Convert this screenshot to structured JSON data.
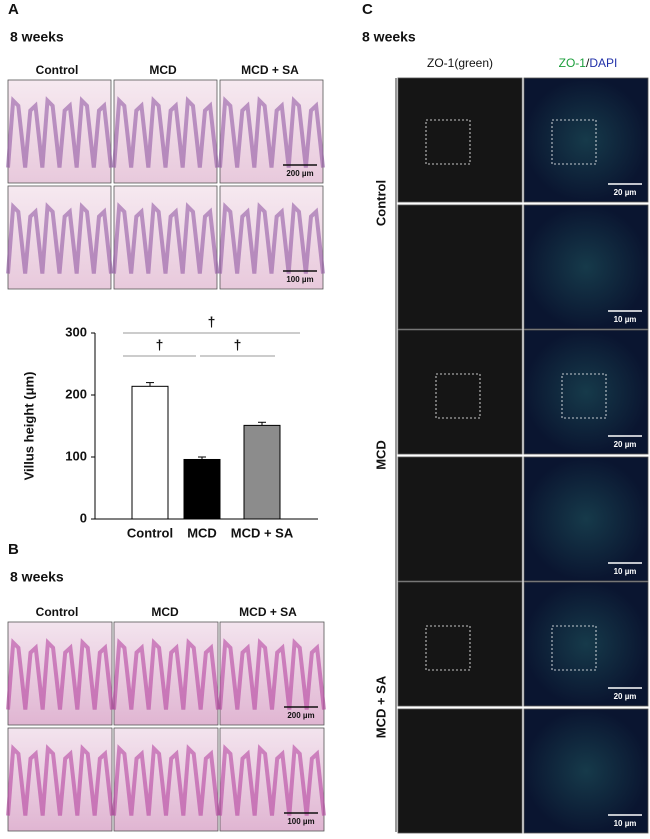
{
  "panels": {
    "a": {
      "label": "A",
      "subtitle": "8 weeks",
      "columns": [
        "Control",
        "MCD",
        "MCD + SA"
      ],
      "scale_bars": [
        "200 µm",
        "100 µm"
      ]
    },
    "b": {
      "label": "B",
      "subtitle": "8 weeks",
      "columns": [
        "Control",
        "MCD",
        "MCD + SA"
      ],
      "scale_bars": [
        "200 µm",
        "100 µm"
      ]
    },
    "c": {
      "label": "C",
      "subtitle": "8 weeks",
      "columns": [
        "ZO-1(green)",
        [
          "ZO-1",
          "/",
          "DAPI"
        ]
      ],
      "rows": [
        {
          "label": "Control",
          "scale_bars": [
            "20 µm",
            "10 µm"
          ]
        },
        {
          "label": "MCD",
          "scale_bars": [
            "20 µm",
            "10 µm"
          ]
        },
        {
          "label": "MCD + SA",
          "scale_bars": [
            "20 µm",
            "10 µm"
          ]
        }
      ]
    }
  },
  "chart_data": {
    "type": "bar",
    "ylabel": "Villus height (μm)",
    "categories": [
      "Control",
      "MCD",
      "MCD + SA"
    ],
    "values": [
      214,
      96,
      151
    ],
    "errors": [
      6,
      4,
      5
    ],
    "colors": [
      "#ffffff",
      "#000000",
      "#8c8c8c"
    ],
    "ylim": [
      0,
      300
    ],
    "yticks": [
      0,
      100,
      200,
      300
    ],
    "annotations": [
      {
        "label": "†",
        "pair": [
          0,
          2
        ]
      },
      {
        "label": "†",
        "pair": [
          0,
          1
        ]
      },
      {
        "label": "†",
        "pair": [
          1,
          2
        ]
      }
    ]
  }
}
